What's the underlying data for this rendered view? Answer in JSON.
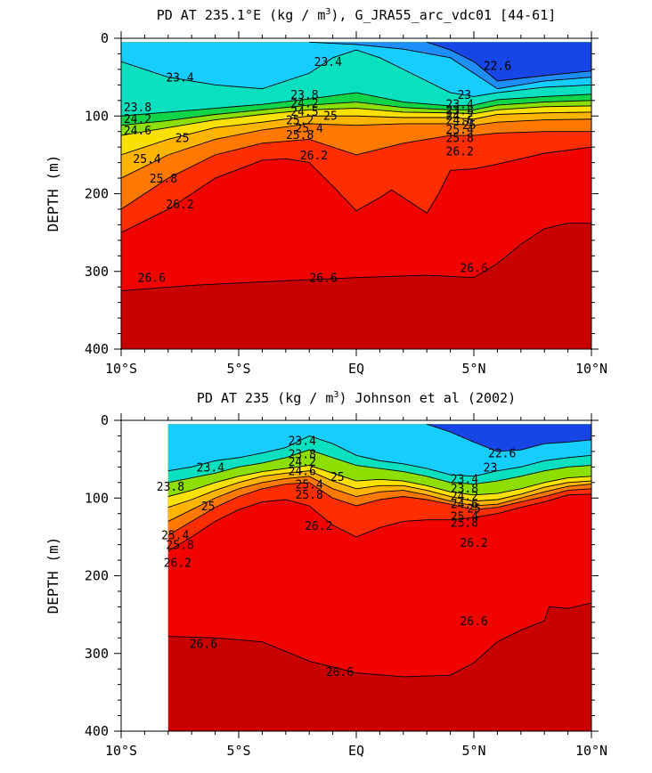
{
  "chart_data": [
    {
      "type": "heatmap",
      "title_main": "PD AT 235.1°E (kg / m",
      "title_sup": "3",
      "title_rest": "), G_JRA55_arc_vdc01 [44-61]",
      "ylabel": "DEPTH (m)",
      "xlabel": "",
      "xlim": [
        -10,
        10
      ],
      "ylim": [
        0,
        400
      ],
      "y_reversed": true,
      "x_ticks": [
        -10,
        -5,
        0,
        5,
        10
      ],
      "x_tick_labels": [
        "10°S",
        "5°S",
        "EQ",
        "5°N",
        "10°N"
      ],
      "y_ticks": [
        0,
        100,
        200,
        300,
        400
      ],
      "y_tick_labels": [
        "0",
        "100",
        "200",
        "300",
        "400"
      ],
      "data_xmin": -10,
      "data_ymin": 5,
      "colors": {
        "shallow_low": "#10e6ff",
        "deep_high": "#c80000"
      },
      "isopycnals": [
        {
          "value": 26.6,
          "x": [
            -10,
            -7,
            -5,
            -3,
            0,
            3,
            5,
            6,
            7,
            8,
            9,
            10
          ],
          "y": [
            325,
            318,
            315,
            312,
            308,
            305,
            308,
            290,
            265,
            245,
            238,
            238
          ]
        },
        {
          "value": 26.2,
          "x": [
            -10,
            -8,
            -6,
            -4,
            -3,
            -2,
            -1,
            0,
            1,
            1.5,
            2,
            3,
            3.5,
            4,
            5,
            6,
            7,
            8,
            10
          ],
          "y": [
            250,
            220,
            180,
            157,
            155,
            160,
            190,
            222,
            205,
            195,
            205,
            225,
            200,
            170,
            168,
            162,
            155,
            148,
            140
          ]
        },
        {
          "value": 25.8,
          "x": [
            -10,
            -8,
            -6,
            -4,
            -2,
            0,
            2,
            4,
            5,
            6,
            8,
            10
          ],
          "y": [
            220,
            180,
            150,
            135,
            130,
            150,
            135,
            125,
            125,
            122,
            120,
            120
          ]
        },
        {
          "value": 25.4,
          "x": [
            -10,
            -8,
            -6,
            -4,
            -2,
            0,
            2,
            4,
            5,
            6,
            8,
            10
          ],
          "y": [
            180,
            150,
            130,
            118,
            110,
            112,
            110,
            110,
            112,
            108,
            105,
            104
          ]
        },
        {
          "value": 25.0,
          "x": [
            -10,
            -8,
            -6,
            -4,
            -2,
            0,
            2,
            4,
            5,
            6,
            8,
            10
          ],
          "y": [
            150,
            130,
            115,
            108,
            100,
            100,
            102,
            102,
            104,
            98,
            96,
            95
          ]
        },
        {
          "value": 24.6,
          "x": [
            -10,
            -8,
            -6,
            -4,
            -2,
            0,
            2,
            4,
            5,
            6,
            8,
            10
          ],
          "y": [
            125,
            115,
            105,
            98,
            92,
            90,
            95,
            96,
            97,
            92,
            88,
            87
          ]
        },
        {
          "value": 24.2,
          "x": [
            -10,
            -8,
            -6,
            -4,
            -2,
            0,
            2,
            4,
            5,
            6,
            8,
            10
          ],
          "y": [
            112,
            106,
            98,
            92,
            86,
            82,
            89,
            92,
            92,
            86,
            82,
            80
          ]
        },
        {
          "value": 23.8,
          "x": [
            -10,
            -8,
            -6,
            -4,
            -2,
            0,
            2,
            4,
            5,
            6,
            8,
            10
          ],
          "y": [
            100,
            95,
            90,
            85,
            78,
            70,
            82,
            87,
            86,
            79,
            75,
            72
          ]
        },
        {
          "value": 23.4,
          "x": [
            -10,
            -8,
            -6,
            -4,
            -2,
            -1,
            0,
            1,
            2,
            3,
            4,
            5,
            6,
            8,
            10
          ],
          "y": [
            30,
            50,
            60,
            65,
            45,
            25,
            15,
            25,
            40,
            55,
            70,
            75,
            70,
            63,
            60
          ]
        },
        {
          "value": 23.0,
          "x": [
            -2,
            0,
            2,
            4,
            5,
            6,
            8,
            10
          ],
          "y": [
            5,
            8,
            14,
            25,
            45,
            65,
            55,
            50
          ]
        },
        {
          "value": 22.6,
          "x": [
            3,
            4,
            5,
            6,
            8,
            10
          ],
          "y": [
            5,
            15,
            30,
            55,
            48,
            42
          ]
        }
      ],
      "labels": [
        {
          "text": "23.4",
          "x": -7.5,
          "y": 50
        },
        {
          "text": "23.4",
          "x": -1.2,
          "y": 30
        },
        {
          "text": "22.6",
          "x": 6.0,
          "y": 35
        },
        {
          "text": "23.8",
          "x": -9.3,
          "y": 88
        },
        {
          "text": "24.2",
          "x": -9.3,
          "y": 103
        },
        {
          "text": "24.6",
          "x": -9.3,
          "y": 118
        },
        {
          "text": "25",
          "x": -7.4,
          "y": 128
        },
        {
          "text": "25.4",
          "x": -8.9,
          "y": 155
        },
        {
          "text": "25.8",
          "x": -8.2,
          "y": 180
        },
        {
          "text": "26.2",
          "x": -7.5,
          "y": 213
        },
        {
          "text": "26.6",
          "x": -8.7,
          "y": 308
        },
        {
          "text": "26.6",
          "x": -1.4,
          "y": 308
        },
        {
          "text": "26.6",
          "x": 5.0,
          "y": 295
        },
        {
          "text": "23.8",
          "x": -2.2,
          "y": 72
        },
        {
          "text": "24.2",
          "x": -2.2,
          "y": 83
        },
        {
          "text": "24.5",
          "x": -2.2,
          "y": 94
        },
        {
          "text": "25",
          "x": -1.1,
          "y": 99
        },
        {
          "text": "25.2",
          "x": -2.4,
          "y": 105
        },
        {
          "text": "25.4",
          "x": -2.0,
          "y": 115
        },
        {
          "text": "25.8",
          "x": -2.4,
          "y": 124
        },
        {
          "text": "26.2",
          "x": -1.8,
          "y": 150
        },
        {
          "text": "23",
          "x": 4.6,
          "y": 72
        },
        {
          "text": "23.4",
          "x": 4.4,
          "y": 84
        },
        {
          "text": "23.8",
          "x": 4.4,
          "y": 92
        },
        {
          "text": "24.2",
          "x": 4.4,
          "y": 99
        },
        {
          "text": "24.6",
          "x": 4.4,
          "y": 105
        },
        {
          "text": "25",
          "x": 4.8,
          "y": 111
        },
        {
          "text": "25.4",
          "x": 4.4,
          "y": 117
        },
        {
          "text": "25.8",
          "x": 4.4,
          "y": 128
        },
        {
          "text": "26.2",
          "x": 4.4,
          "y": 145
        }
      ]
    },
    {
      "type": "heatmap",
      "title_main": "PD AT 235 (kg / m",
      "title_sup": "3",
      "title_rest": ") Johnson et al (2002)",
      "ylabel": "DEPTH (m)",
      "xlabel": "",
      "xlim": [
        -10,
        10
      ],
      "ylim": [
        0,
        400
      ],
      "y_reversed": true,
      "x_ticks": [
        -10,
        -5,
        0,
        5,
        10
      ],
      "x_tick_labels": [
        "10°S",
        "5°S",
        "EQ",
        "5°N",
        "10°N"
      ],
      "y_ticks": [
        0,
        100,
        200,
        300,
        400
      ],
      "y_tick_labels": [
        "0",
        "100",
        "200",
        "300",
        "400"
      ],
      "data_xmin": -8,
      "data_ymin": 5,
      "colors": {
        "shallow_low": "#10e6ff",
        "deep_high": "#c80000"
      },
      "isopycnals": [
        {
          "value": 26.6,
          "x": [
            -8,
            -6,
            -4,
            -2,
            0,
            2,
            4,
            5,
            6,
            7,
            8,
            8.2,
            9,
            10
          ],
          "y": [
            278,
            280,
            285,
            310,
            325,
            330,
            328,
            312,
            285,
            270,
            258,
            240,
            242,
            235
          ]
        },
        {
          "value": 26.2,
          "x": [
            -8,
            -7,
            -6,
            -5,
            -4,
            -3,
            -2,
            -1,
            0,
            1,
            2,
            3,
            4,
            5,
            6,
            7,
            8,
            9,
            10
          ],
          "y": [
            168,
            150,
            130,
            115,
            105,
            102,
            110,
            135,
            150,
            138,
            130,
            128,
            128,
            125,
            120,
            112,
            105,
            96,
            95
          ]
        },
        {
          "value": 25.8,
          "x": [
            -8,
            -7,
            -6,
            -5,
            -4,
            -3,
            -2,
            -1,
            0,
            1,
            2,
            3,
            4,
            5,
            6,
            7,
            8,
            9,
            10
          ],
          "y": [
            148,
            130,
            112,
            98,
            88,
            82,
            80,
            100,
            110,
            102,
            98,
            102,
            108,
            115,
            112,
            105,
            98,
            90,
            88
          ]
        },
        {
          "value": 25.4,
          "x": [
            -8,
            -7,
            -6,
            -5,
            -4,
            -3,
            -2,
            -1,
            0,
            1,
            2,
            3,
            4,
            5,
            6,
            7,
            8,
            9,
            10
          ],
          "y": [
            130,
            115,
            100,
            88,
            80,
            75,
            72,
            88,
            98,
            92,
            90,
            96,
            104,
            110,
            108,
            100,
            92,
            85,
            82
          ]
        },
        {
          "value": 25.0,
          "x": [
            -8,
            -7,
            -6,
            -5,
            -4,
            -3,
            -2,
            -1,
            0,
            1,
            2,
            3,
            4,
            5,
            6,
            7,
            8,
            9,
            10
          ],
          "y": [
            112,
            102,
            90,
            80,
            72,
            68,
            65,
            78,
            88,
            84,
            84,
            90,
            98,
            104,
            102,
            95,
            86,
            80,
            78
          ]
        },
        {
          "value": 24.6,
          "x": [
            -8,
            -7,
            -6,
            -5,
            -4,
            -3,
            -2,
            -1,
            0,
            1,
            2,
            3,
            4,
            5,
            6,
            7,
            8,
            9,
            10
          ],
          "y": [
            98,
            90,
            80,
            72,
            66,
            62,
            58,
            68,
            78,
            76,
            78,
            84,
            92,
            96,
            94,
            88,
            80,
            74,
            72
          ]
        },
        {
          "value": 23.8,
          "x": [
            -8,
            -7,
            -6,
            -5,
            -4,
            -3,
            -2,
            -1,
            0,
            1,
            2,
            3,
            4,
            5,
            6,
            7,
            8,
            9,
            10
          ],
          "y": [
            80,
            74,
            68,
            60,
            55,
            48,
            38,
            48,
            58,
            62,
            66,
            72,
            80,
            82,
            78,
            72,
            65,
            60,
            58
          ]
        },
        {
          "value": 23.4,
          "x": [
            -8,
            -7,
            -6,
            -5,
            -4,
            -3,
            -2,
            -1,
            0,
            1,
            2,
            3,
            4,
            5,
            6,
            7,
            8,
            9,
            10
          ],
          "y": [
            65,
            60,
            52,
            48,
            42,
            35,
            20,
            30,
            45,
            52,
            56,
            62,
            70,
            72,
            65,
            60,
            52,
            48,
            45
          ]
        },
        {
          "value": 22.6,
          "x": [
            3,
            4,
            5,
            6,
            7,
            8,
            9,
            10
          ],
          "y": [
            5,
            15,
            28,
            40,
            38,
            30,
            28,
            25
          ]
        }
      ],
      "labels": [
        {
          "text": "23.4",
          "x": -6.2,
          "y": 60
        },
        {
          "text": "23.8",
          "x": -7.9,
          "y": 85
        },
        {
          "text": "25",
          "x": -6.3,
          "y": 110
        },
        {
          "text": "25.4",
          "x": -7.7,
          "y": 147
        },
        {
          "text": "25.8",
          "x": -7.5,
          "y": 160
        },
        {
          "text": "26.2",
          "x": -7.6,
          "y": 183
        },
        {
          "text": "26.6",
          "x": -6.5,
          "y": 287
        },
        {
          "text": "26.6",
          "x": -0.7,
          "y": 323
        },
        {
          "text": "26.6",
          "x": 5.0,
          "y": 258
        },
        {
          "text": "23.4",
          "x": -2.3,
          "y": 26
        },
        {
          "text": "23.8",
          "x": -2.3,
          "y": 43
        },
        {
          "text": "24.2",
          "x": -2.3,
          "y": 53
        },
        {
          "text": "24.6",
          "x": -2.3,
          "y": 65
        },
        {
          "text": "25",
          "x": -0.8,
          "y": 72
        },
        {
          "text": "25.4",
          "x": -2.0,
          "y": 82
        },
        {
          "text": "25.8",
          "x": -2.0,
          "y": 95
        },
        {
          "text": "26.2",
          "x": -1.6,
          "y": 135
        },
        {
          "text": "22.6",
          "x": 6.2,
          "y": 42
        },
        {
          "text": "23",
          "x": 5.7,
          "y": 60
        },
        {
          "text": "23.4",
          "x": 4.6,
          "y": 75
        },
        {
          "text": "23.8",
          "x": 4.6,
          "y": 87
        },
        {
          "text": "24.2",
          "x": 4.6,
          "y": 97
        },
        {
          "text": "24.6",
          "x": 4.6,
          "y": 107
        },
        {
          "text": "25",
          "x": 5.0,
          "y": 113
        },
        {
          "text": "25.4",
          "x": 4.6,
          "y": 123
        },
        {
          "text": "25.8",
          "x": 4.6,
          "y": 131
        },
        {
          "text": "26.2",
          "x": 5.0,
          "y": 157
        }
      ]
    }
  ]
}
